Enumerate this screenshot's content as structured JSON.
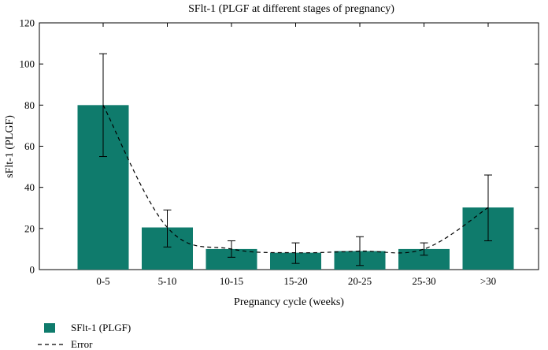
{
  "chart_data": {
    "type": "bar",
    "title": "SFlt-1 (PLGF at different stages of pregnancy)",
    "xlabel": "Pregnancy cycle (weeks)",
    "ylabel": "sFlt-1 (PLGF)",
    "ylim": [
      0,
      120
    ],
    "yticks": [
      "0",
      "20",
      "40",
      "60",
      "80",
      "100",
      "120"
    ],
    "categories": [
      "0-5",
      "5-10",
      "10-15",
      "15-20",
      "20-25",
      "25-30",
      ">30"
    ],
    "series": [
      {
        "name": "SFlt-1 (PLGF)",
        "values": [
          80,
          20.5,
          10,
          8.2,
          9,
          10,
          30.2
        ],
        "error_low": [
          55,
          11,
          6,
          3,
          2,
          7,
          14
        ],
        "error_high": [
          105,
          29,
          14,
          13,
          16,
          13,
          46
        ]
      }
    ],
    "line_series": {
      "name": "Error",
      "style": "dashed",
      "values": [
        80,
        20.5,
        10,
        8.2,
        9,
        10,
        30.2
      ]
    },
    "legend": [
      {
        "label": "SFlt-1 (PLGF)",
        "kind": "bar"
      },
      {
        "label": "Error",
        "kind": "dashed-line"
      }
    ],
    "legend_position": "bottom-left",
    "grid": false,
    "colors": {
      "bar": "#0f7b6c",
      "line": "#000000",
      "axis": "#000000"
    }
  }
}
